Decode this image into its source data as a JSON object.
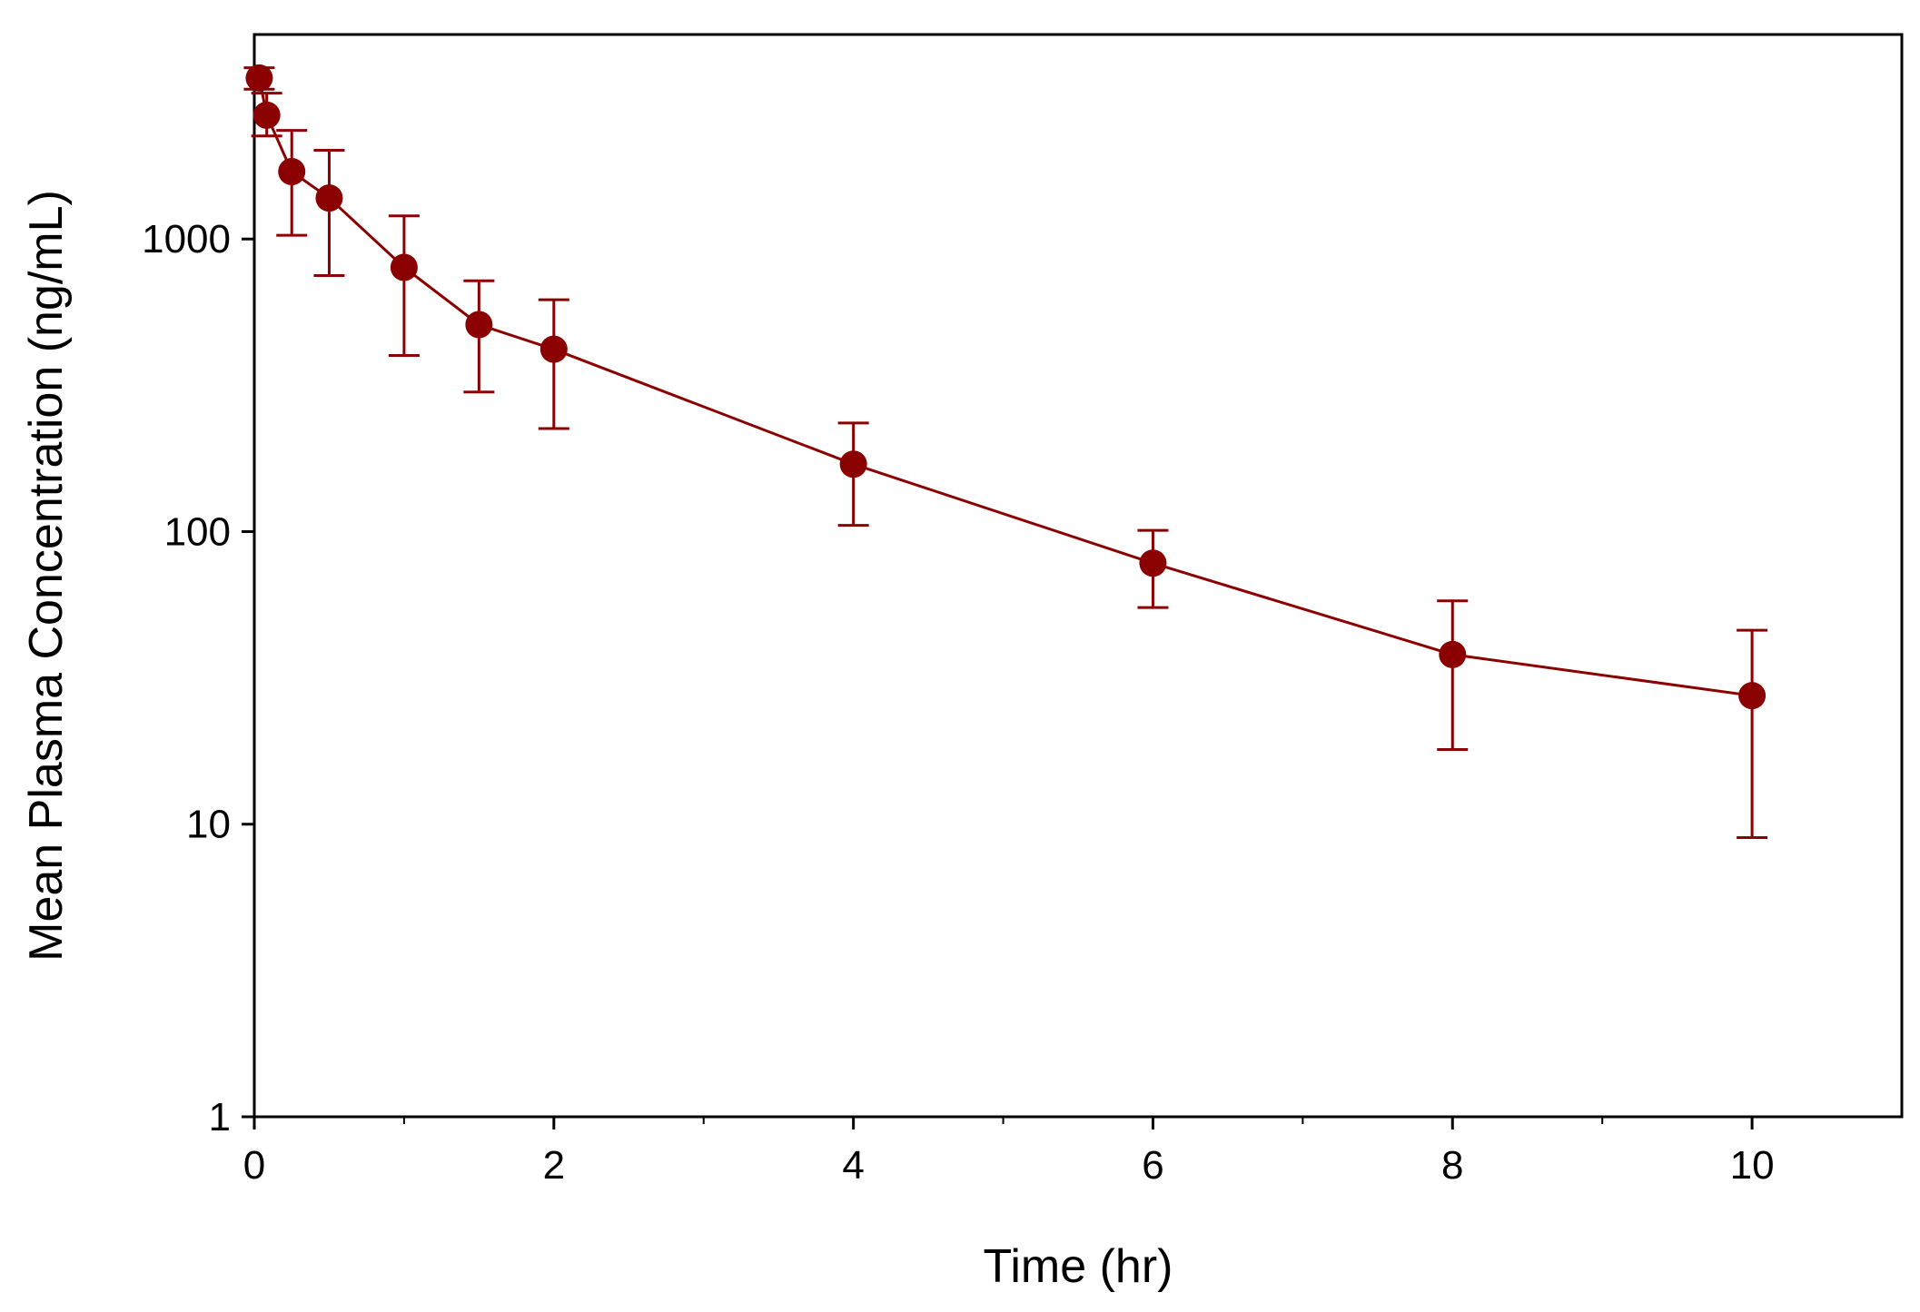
{
  "chart_data": {
    "type": "line",
    "title": "",
    "xlabel": "Time (hr)",
    "ylabel": "Mean Plasma Concentration (ng/mL)",
    "xlim": [
      0,
      11
    ],
    "ylim": [
      1,
      5000
    ],
    "yscale": "log",
    "x_ticks": [
      0,
      2,
      4,
      6,
      8,
      10
    ],
    "y_ticks": [
      1,
      10,
      100,
      1000
    ],
    "color": "#8b0000",
    "series": [
      {
        "name": "Mean Plasma Concentration",
        "points": [
          {
            "x": 0.033,
            "y": 3550,
            "lo": 3250,
            "hi": 3850
          },
          {
            "x": 0.083,
            "y": 2650,
            "lo": 2250,
            "hi": 3150
          },
          {
            "x": 0.25,
            "y": 1700,
            "lo": 1030,
            "hi": 2350
          },
          {
            "x": 0.5,
            "y": 1380,
            "lo": 750,
            "hi": 2010
          },
          {
            "x": 1.0,
            "y": 800,
            "lo": 400,
            "hi": 1200
          },
          {
            "x": 1.5,
            "y": 510,
            "lo": 300,
            "hi": 720
          },
          {
            "x": 2.0,
            "y": 420,
            "lo": 225,
            "hi": 620
          },
          {
            "x": 4.0,
            "y": 170,
            "lo": 105,
            "hi": 235
          },
          {
            "x": 6.0,
            "y": 78,
            "lo": 55,
            "hi": 101
          },
          {
            "x": 8.0,
            "y": 38,
            "lo": 18,
            "hi": 58
          },
          {
            "x": 10.0,
            "y": 27.5,
            "lo": 9,
            "hi": 46
          }
        ]
      }
    ]
  }
}
